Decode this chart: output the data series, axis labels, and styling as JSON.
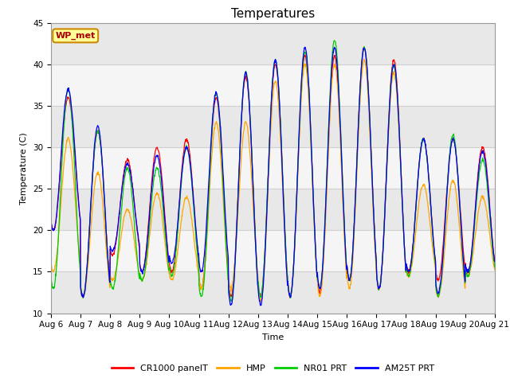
{
  "title": "Temperatures",
  "xlabel": "Time",
  "ylabel": "Temperature (C)",
  "ylim": [
    10,
    45
  ],
  "xlim": [
    0,
    15
  ],
  "x_tick_labels": [
    "Aug 6",
    "Aug 7",
    "Aug 8",
    "Aug 9",
    "Aug 10",
    "Aug 11",
    "Aug 12",
    "Aug 13",
    "Aug 14",
    "Aug 15",
    "Aug 16",
    "Aug 17",
    "Aug 18",
    "Aug 19",
    "Aug 20",
    "Aug 21"
  ],
  "legend_labels": [
    "CR1000 panelT",
    "HMP",
    "NR01 PRT",
    "AM25T PRT"
  ],
  "legend_colors": [
    "#ff0000",
    "#ffa500",
    "#00cc00",
    "#0000ff"
  ],
  "series_colors": [
    "#ff0000",
    "#ffa500",
    "#00cc00",
    "#0000ff"
  ],
  "annotation_text": "WP_met",
  "annotation_bg": "#ffff99",
  "annotation_border": "#cc8800",
  "annotation_text_color": "#aa0000",
  "grid_color": "#d0d0d0",
  "bg_color": "#e8e8e8",
  "stripe_color_light": "#f5f5f5",
  "yticks": [
    10,
    15,
    20,
    25,
    30,
    35,
    40,
    45
  ],
  "title_fontsize": 11,
  "day_peaks_cr1000": [
    36,
    32,
    28.5,
    30,
    31,
    36,
    38.5,
    40,
    41,
    41,
    42,
    40.5,
    31,
    31,
    30
  ],
  "day_mins_cr1000": [
    20,
    12,
    17,
    15,
    15,
    13,
    12,
    12,
    12,
    12.5,
    14,
    13,
    15,
    14,
    15
  ],
  "day_peaks_hmp": [
    31,
    27,
    22.5,
    24.5,
    24,
    33,
    33,
    38,
    40,
    40,
    40.5,
    39,
    25.5,
    26,
    24
  ],
  "day_mins_hmp": [
    15,
    12,
    14,
    14,
    14,
    13,
    13,
    11.5,
    12,
    12,
    13,
    13,
    14.5,
    12,
    14.5
  ],
  "day_peaks_nr01": [
    37,
    32,
    27.5,
    27.5,
    30,
    36.5,
    39,
    40.5,
    41.5,
    43,
    42,
    40,
    31,
    31.5,
    28.5
  ],
  "day_mins_nr01": [
    13,
    12,
    13,
    14,
    14.5,
    12,
    11.5,
    12,
    12,
    13,
    14,
    13,
    14.5,
    12,
    14.5
  ],
  "day_peaks_am25": [
    37,
    32.5,
    28,
    29,
    30,
    36.5,
    39,
    40.5,
    42,
    42,
    42,
    40,
    31,
    31,
    29.5
  ],
  "day_mins_am25": [
    20,
    12,
    17.5,
    15,
    16,
    15,
    11,
    11,
    12,
    13,
    14,
    13,
    15,
    12.5,
    15
  ]
}
